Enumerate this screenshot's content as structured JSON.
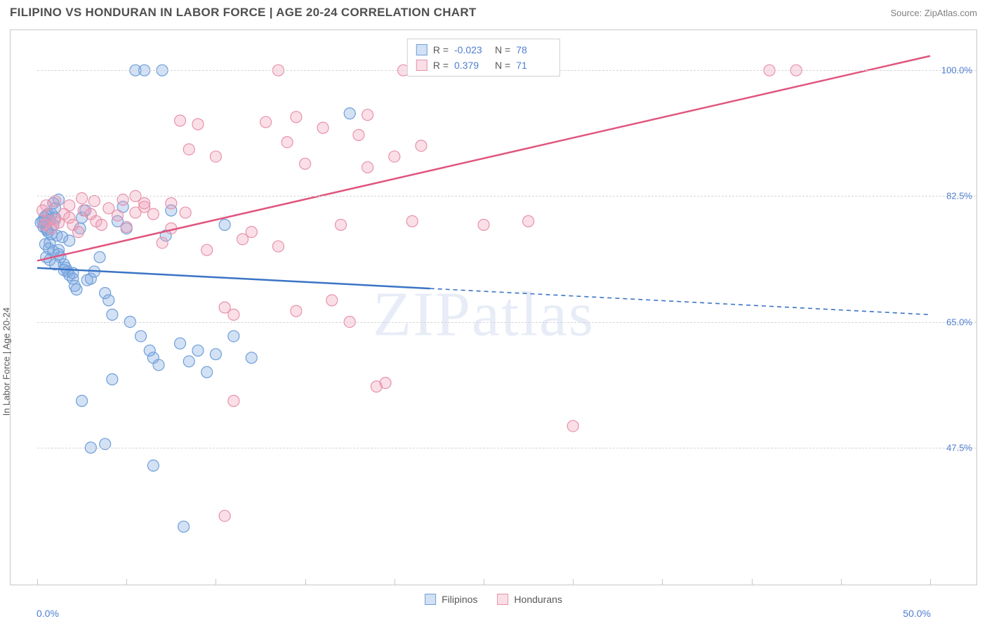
{
  "header": {
    "title": "FILIPINO VS HONDURAN IN LABOR FORCE | AGE 20-24 CORRELATION CHART",
    "source": "Source: ZipAtlas.com"
  },
  "watermark": "ZIPatlas",
  "chart": {
    "type": "scatter",
    "ylabel": "In Labor Force | Age 20-24",
    "xlim": [
      0,
      50
    ],
    "ylim": [
      30,
      105
    ],
    "x_ticks": [
      0,
      5,
      10,
      15,
      20,
      25,
      30,
      35,
      40,
      45,
      50
    ],
    "x_tick_labels": {
      "min": "0.0%",
      "max": "50.0%"
    },
    "y_gridlines": [
      47.5,
      65.0,
      82.5,
      100.0
    ],
    "y_tick_labels": [
      "47.5%",
      "65.0%",
      "82.5%",
      "100.0%"
    ],
    "background_color": "#ffffff",
    "grid_color": "#d6d6d6",
    "border_color": "#c8c8c8",
    "label_color": "#4f7dcf",
    "axis_text_color": "#585858",
    "marker_radius": 8,
    "marker_stroke_width": 1.2,
    "line_width": 2.5,
    "series": {
      "filipinos": {
        "label": "Filipinos",
        "fill": "rgba(130,170,225,0.35)",
        "stroke": "#6e9fd8",
        "line_color": "#3b74c4",
        "r_label": "R =",
        "r_value": "-0.023",
        "n_label": "N =",
        "n_value": "78",
        "trend": {
          "x0": 0,
          "y0": 72.5,
          "x1": 50,
          "y1": 66.0,
          "solid_until_x": 22
        },
        "points": [
          [
            0.4,
            79
          ],
          [
            0.5,
            78
          ],
          [
            0.6,
            77.5
          ],
          [
            0.7,
            76
          ],
          [
            0.8,
            80
          ],
          [
            0.9,
            78.5
          ],
          [
            1.0,
            79.5
          ],
          [
            1.1,
            77
          ],
          [
            1.2,
            75
          ],
          [
            1.3,
            74
          ],
          [
            1.5,
            73
          ],
          [
            1.6,
            72.5
          ],
          [
            1.7,
            72
          ],
          [
            1.8,
            71.5
          ],
          [
            2.0,
            71
          ],
          [
            2.1,
            70
          ],
          [
            2.2,
            69.5
          ],
          [
            2.4,
            78
          ],
          [
            2.5,
            79.5
          ],
          [
            2.7,
            80.5
          ],
          [
            3.0,
            71
          ],
          [
            3.2,
            72
          ],
          [
            3.5,
            74
          ],
          [
            3.8,
            69
          ],
          [
            4.0,
            68
          ],
          [
            4.2,
            66
          ],
          [
            4.5,
            79
          ],
          [
            4.8,
            81
          ],
          [
            5.0,
            78
          ],
          [
            5.2,
            65
          ],
          [
            5.5,
            100
          ],
          [
            5.8,
            63
          ],
          [
            6.0,
            100
          ],
          [
            6.3,
            61
          ],
          [
            6.5,
            60
          ],
          [
            6.8,
            59
          ],
          [
            7.0,
            100
          ],
          [
            7.2,
            77
          ],
          [
            7.5,
            80.5
          ],
          [
            8.0,
            62
          ],
          [
            8.5,
            59.5
          ],
          [
            3.8,
            48
          ],
          [
            9.0,
            61
          ],
          [
            9.5,
            58
          ],
          [
            10.0,
            60.5
          ],
          [
            10.5,
            78.5
          ],
          [
            11.0,
            63
          ],
          [
            12.0,
            60
          ],
          [
            4.2,
            57
          ],
          [
            6.5,
            45
          ],
          [
            2.5,
            54
          ],
          [
            3.0,
            47.5
          ],
          [
            8.2,
            36.5
          ],
          [
            17.5,
            94
          ],
          [
            1.2,
            82
          ],
          [
            0.9,
            81.5
          ],
          [
            1.0,
            80.8
          ],
          [
            0.6,
            80
          ],
          [
            0.7,
            79.2
          ],
          [
            0.5,
            79.8
          ],
          [
            0.4,
            79.5
          ],
          [
            0.3,
            79
          ],
          [
            0.2,
            78.8
          ],
          [
            0.35,
            78.2
          ],
          [
            0.55,
            77.8
          ],
          [
            0.8,
            77.2
          ],
          [
            1.4,
            76.8
          ],
          [
            1.8,
            76.3
          ],
          [
            0.45,
            75.8
          ],
          [
            0.65,
            75.2
          ],
          [
            0.9,
            74.8
          ],
          [
            1.2,
            74.4
          ],
          [
            0.5,
            74
          ],
          [
            0.7,
            73.6
          ],
          [
            1.0,
            73
          ],
          [
            1.5,
            72.2
          ],
          [
            2.0,
            71.8
          ],
          [
            2.8,
            70.8
          ]
        ]
      },
      "hondurans": {
        "label": "Hondurans",
        "fill": "rgba(240,155,180,0.32)",
        "stroke": "#e792ac",
        "line_color": "#e0557e",
        "r_label": "R =",
        "r_value": "0.379",
        "n_label": "N =",
        "n_value": "71",
        "trend": {
          "x0": 0,
          "y0": 73.5,
          "x1": 50,
          "y1": 102.0,
          "solid_until_x": 50
        },
        "points": [
          [
            0.4,
            78.5
          ],
          [
            0.6,
            79
          ],
          [
            0.8,
            78
          ],
          [
            1.0,
            79.2
          ],
          [
            1.2,
            78.8
          ],
          [
            1.5,
            80
          ],
          [
            1.8,
            79.5
          ],
          [
            2.0,
            78.5
          ],
          [
            2.3,
            77.5
          ],
          [
            2.6,
            80.5
          ],
          [
            3.0,
            80
          ],
          [
            3.3,
            79
          ],
          [
            3.6,
            78.5
          ],
          [
            4.0,
            80.8
          ],
          [
            4.5,
            79.8
          ],
          [
            5.0,
            78.2
          ],
          [
            5.5,
            80.2
          ],
          [
            6.0,
            81
          ],
          [
            6.5,
            80
          ],
          [
            7.0,
            76
          ],
          [
            7.5,
            78
          ],
          [
            8.0,
            93
          ],
          [
            8.5,
            89
          ],
          [
            9.0,
            92.5
          ],
          [
            9.5,
            75
          ],
          [
            10.0,
            88
          ],
          [
            10.5,
            67
          ],
          [
            11.0,
            66
          ],
          [
            11.5,
            76.5
          ],
          [
            12.0,
            77.5
          ],
          [
            12.8,
            92.8
          ],
          [
            13.5,
            75.5
          ],
          [
            14.0,
            90
          ],
          [
            14.5,
            66.5
          ],
          [
            15.0,
            87
          ],
          [
            16.0,
            92
          ],
          [
            16.5,
            68
          ],
          [
            17.0,
            78.5
          ],
          [
            17.5,
            65
          ],
          [
            18.0,
            91
          ],
          [
            18.5,
            86.5
          ],
          [
            19.0,
            56
          ],
          [
            19.5,
            56.5
          ],
          [
            20.0,
            88
          ],
          [
            20.5,
            100
          ],
          [
            21.0,
            79
          ],
          [
            22.0,
            100
          ],
          [
            21.5,
            89.5
          ],
          [
            25.0,
            78.5
          ],
          [
            25.5,
            100
          ],
          [
            26.5,
            100
          ],
          [
            27.5,
            79
          ],
          [
            30.0,
            50.5
          ],
          [
            11.0,
            54
          ],
          [
            13.5,
            100
          ],
          [
            10.5,
            38
          ],
          [
            6.0,
            81.5
          ],
          [
            5.5,
            82.5
          ],
          [
            4.8,
            82
          ],
          [
            3.2,
            81.8
          ],
          [
            2.5,
            82.2
          ],
          [
            1.8,
            81.2
          ],
          [
            1.0,
            81.8
          ],
          [
            0.5,
            81.2
          ],
          [
            0.3,
            80.5
          ],
          [
            41.0,
            100
          ],
          [
            42.5,
            100
          ],
          [
            14.5,
            93.5
          ],
          [
            18.5,
            93.8
          ],
          [
            7.5,
            81.5
          ],
          [
            8.3,
            80.2
          ]
        ]
      }
    }
  },
  "bottom_legend": {
    "item1": "Filipinos",
    "item2": "Hondurans"
  }
}
